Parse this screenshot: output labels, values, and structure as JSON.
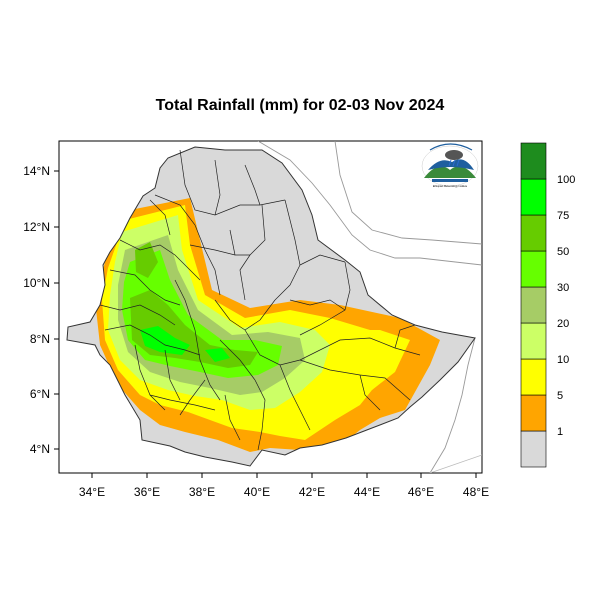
{
  "title": "Total Rainfall (mm) for 02-03 Nov 2024",
  "lat_ticks": [
    "14°N",
    "12°N",
    "10°N",
    "8°N",
    "6°N",
    "4°N"
  ],
  "lon_ticks": [
    "34°E",
    "36°E",
    "38°E",
    "40°E",
    "42°E",
    "44°E",
    "46°E",
    "48°E"
  ],
  "legend": {
    "labels": [
      "1",
      "5",
      "10",
      "20",
      "30",
      "50",
      "75",
      "100"
    ],
    "colors": [
      "#d9d9d9",
      "#ffa500",
      "#ffff00",
      "#ccff66",
      "#a6cc66",
      "#66ff00",
      "#66cc00",
      "#00ff00",
      "#1e8c1e"
    ]
  },
  "logo": {
    "caption": "Ethiopian Meteorology Institute"
  }
}
